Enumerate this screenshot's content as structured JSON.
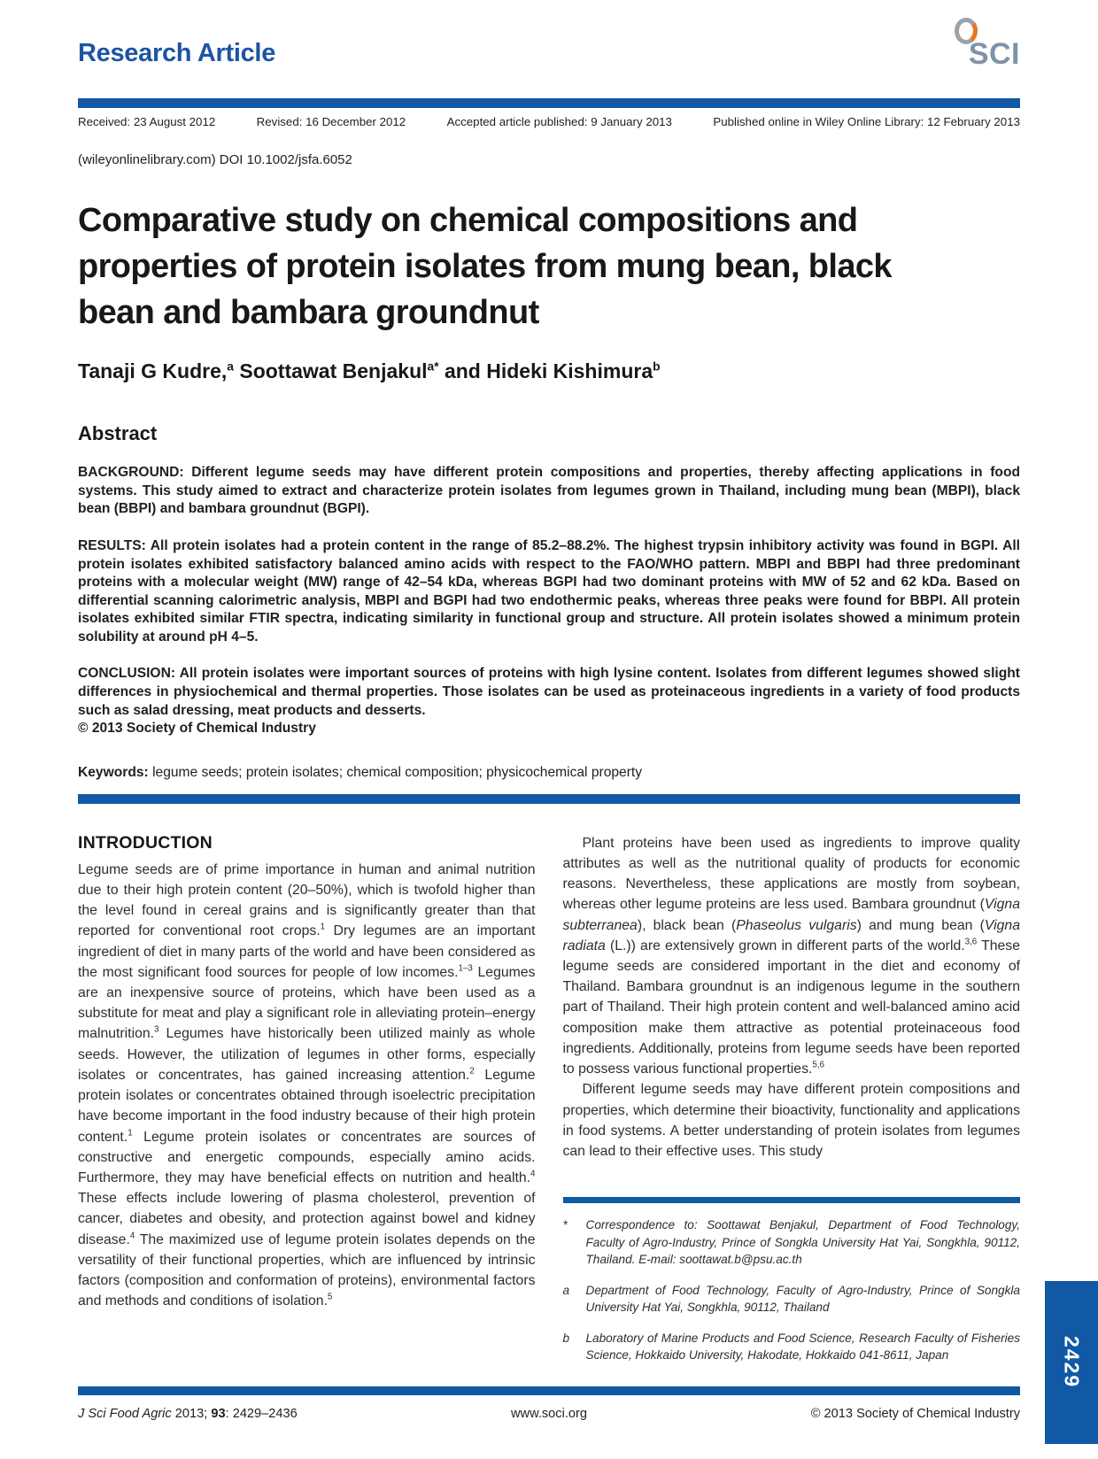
{
  "header": {
    "article_type": "Research Article",
    "logo_text": "SCI",
    "received": "Received: 23 August 2012",
    "revised": "Revised: 16 December 2012",
    "accepted": "Accepted article published: 9 January 2013",
    "published": "Published online in Wiley Online Library: 12 February 2013",
    "doi_line": "(wileyonlinelibrary.com) DOI 10.1002/jsfa.6052"
  },
  "title": "Comparative study on chemical compositions and properties of protein isolates from mung bean, black bean and bambara groundnut",
  "authors_html": "Tanaji G Kudre,<sup>a</sup> Soottawat Benjakul<sup>a*</sup> and Hideki Kishimura<sup>b</sup>",
  "abstract": {
    "heading": "Abstract",
    "background": "BACKGROUND: Different legume seeds may have different protein compositions and properties, thereby affecting applications in food systems. This study aimed to extract and characterize protein isolates from legumes grown in Thailand, including mung bean (MBPI), black bean (BBPI) and bambara groundnut (BGPI).",
    "results": "RESULTS: All protein isolates had a protein content in the range of 85.2–88.2%. The highest trypsin inhibitory activity was found in BGPI. All protein isolates exhibited satisfactory balanced amino acids with respect to the FAO/WHO pattern. MBPI and BBPI had three predominant proteins with a molecular weight (MW) range of 42–54 kDa, whereas BGPI had two dominant proteins with MW of 52 and 62 kDa. Based on differential scanning calorimetric analysis, MBPI and BGPI had two endothermic peaks, whereas three peaks were found for BBPI. All protein isolates exhibited similar FTIR spectra, indicating similarity in functional group and structure. All protein isolates showed a minimum protein solubility at around pH 4–5.",
    "conclusion": "CONCLUSION: All protein isolates were important sources of proteins with high lysine content. Isolates from different legumes showed slight differences in physiochemical and thermal properties. Those isolates can be used as proteinaceous ingredients in a variety of food products such as salad dressing, meat products and desserts.",
    "copyright": "© 2013 Society of Chemical Industry"
  },
  "keywords": {
    "label": "Keywords:",
    "text": "legume seeds; protein isolates; chemical composition; physicochemical property"
  },
  "introduction": {
    "heading": "INTRODUCTION",
    "para1_html": "Legume seeds are of prime importance in human and animal nutrition due to their high protein content (20–50%), which is twofold higher than the level found in cereal grains and is significantly greater than that reported for conventional root crops.<sup>1</sup> Dry legumes are an important ingredient of diet in many parts of the world and have been considered as the most significant food sources for people of low incomes.<sup>1–3</sup> Legumes are an inexpensive source of proteins, which have been used as a substitute for meat and play a significant role in alleviating protein–energy malnutrition.<sup>3</sup> Legumes have historically been utilized mainly as whole seeds. However, the utilization of legumes in other forms, especially isolates or concentrates, has gained increasing attention.<sup>2</sup> Legume protein isolates or concentrates obtained through isoelectric precipitation have become important in the food industry because of their high protein content.<sup>1</sup> Legume protein isolates or concentrates are sources of constructive and energetic compounds, especially amino acids. Furthermore, they may have beneficial effects on nutrition and health.<sup>4</sup> These effects include lowering of plasma cholesterol, prevention of cancer, diabetes and obesity, and protection against bowel and kidney disease.<sup>4</sup> The maximized use of legume protein isolates depends on the versatility of their functional properties, which are influenced by intrinsic factors (composition and conformation of proteins), environmental factors and methods and conditions of isolation.<sup>5</sup>"
  },
  "right_column": {
    "para1_html": "Plant proteins have been used as ingredients to improve quality attributes as well as the nutritional quality of products for economic reasons. Nevertheless, these applications are mostly from soybean, whereas other legume proteins are less used. Bambara groundnut (<i>Vigna subterranea</i>), black bean (<i>Phaseolus vulgaris</i>) and mung bean (<i>Vigna radiata</i> (L.)) are extensively grown in different parts of the world.<sup>3,6</sup> These legume seeds are considered important in the diet and economy of Thailand. Bambara groundnut is an indigenous legume in the southern part of Thailand. Their high protein content and well-balanced amino acid composition make them attractive as potential proteinaceous food ingredients. Additionally, proteins from legume seeds have been reported to possess various functional properties.<sup>5,6</sup>",
    "para2_html": "Different legume seeds may have different protein compositions and properties, which determine their bioactivity, functionality and applications in food systems. A better understanding of protein isolates from legumes can lead to their effective uses. This study"
  },
  "footnotes": {
    "items": [
      {
        "marker": "*",
        "text_html": "Correspondence to: Soottawat Benjakul, Department of Food Technology, Faculty of Agro-Industry, Prince of Songkla University Hat Yai, Songkhla, 90112, Thailand. E-mail: soottawat.b@psu.ac.th"
      },
      {
        "marker": "a",
        "text_html": "Department of Food Technology, Faculty of Agro-Industry, Prince of Songkla University Hat Yai, Songkhla, 90112, Thailand"
      },
      {
        "marker": "b",
        "text_html": "Laboratory of Marine Products and Food Science, Research Faculty of Fisheries Science, Hokkaido University, Hakodate, Hokkaido 041-8611, Japan"
      }
    ]
  },
  "footer": {
    "citation_html": "<i>J Sci Food Agric</i> 2013; <b>93</b>: 2429–2436",
    "website": "www.soci.org",
    "copyright": "© 2013 Society of Chemical Industry",
    "page_number": "2429"
  },
  "colors": {
    "accent_blue": "#1158a5",
    "logo_slate": "#7e93a8",
    "logo_orange": "#e87722"
  }
}
